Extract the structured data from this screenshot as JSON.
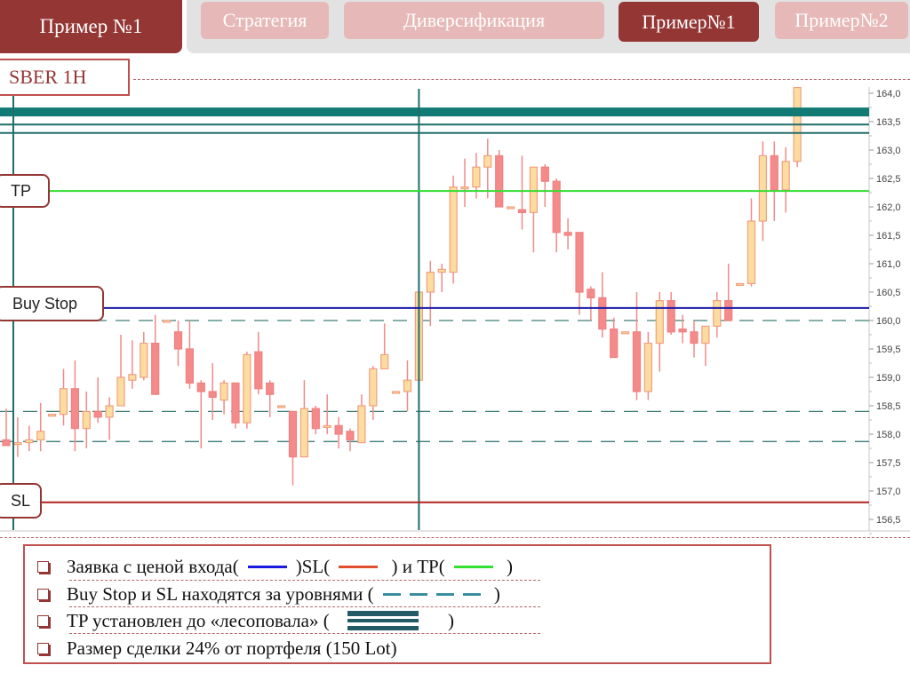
{
  "header": {
    "main_tab": "Пример №1",
    "tabs": [
      {
        "label": "Стратегия",
        "active": false
      },
      {
        "label": "Диверсификация",
        "active": false
      },
      {
        "label": "Пример№1",
        "active": true
      },
      {
        "label": "Пример№2",
        "active": false
      }
    ]
  },
  "chart_title": "SBER 1H",
  "level_labels": {
    "tp": "TP",
    "buy_stop": "Buy Stop",
    "sl": "SL"
  },
  "colors": {
    "accent": "#943634",
    "tab_light": "#e6b8b7",
    "entry": "#1a1aa8",
    "sl": "#b22222",
    "tp": "#33dd33",
    "levels": "#2e7a78",
    "bull": "#fddca0",
    "bear": "#f48a8a"
  },
  "chart_data": {
    "type": "candlestick",
    "title": "SBER 1H",
    "ylim": [
      156.3,
      164.1
    ],
    "y_ticks": [
      "164,0",
      "163,5",
      "163,0",
      "162,5",
      "162,0",
      "161,5",
      "161,0",
      "160,5",
      "160,0",
      "159,5",
      "159,0",
      "158,5",
      "158,0",
      "157,5",
      "157,0",
      "156,5"
    ],
    "y_tick_values": [
      164.0,
      163.5,
      163.0,
      162.5,
      162.0,
      161.5,
      161.0,
      160.5,
      160.0,
      159.5,
      159.0,
      158.5,
      158.0,
      157.5,
      157.0,
      156.5
    ],
    "grid": false,
    "levels": {
      "tp": 162.28,
      "buy_stop": 160.22,
      "sl": 156.8,
      "resistance_thick": 163.67,
      "resistance_lines": [
        163.45,
        163.3
      ],
      "dashed_levels": [
        160.0,
        158.4,
        157.87
      ]
    },
    "vertical_markers_candle_index": [
      1,
      36
    ],
    "candles_ohlc": [
      [
        157.9,
        158.45,
        157.8,
        157.8
      ],
      [
        157.85,
        158.3,
        157.6,
        157.85
      ],
      [
        157.85,
        158.15,
        157.7,
        157.9
      ],
      [
        157.9,
        158.55,
        157.7,
        158.05
      ],
      [
        158.35,
        158.35,
        158.35,
        158.35
      ],
      [
        158.35,
        159.15,
        158.15,
        158.8
      ],
      [
        158.8,
        159.3,
        157.7,
        158.1
      ],
      [
        158.1,
        158.75,
        157.75,
        158.4
      ],
      [
        158.4,
        159.0,
        158.2,
        158.3
      ],
      [
        158.3,
        158.65,
        157.9,
        158.5
      ],
      [
        158.5,
        159.75,
        158.5,
        159.0
      ],
      [
        158.95,
        159.65,
        158.8,
        159.05
      ],
      [
        159.0,
        159.8,
        158.95,
        159.6
      ],
      [
        159.6,
        160.1,
        158.7,
        158.7
      ],
      [
        160.0,
        160.0,
        160.0,
        160.0
      ],
      [
        159.8,
        160.0,
        159.2,
        159.5
      ],
      [
        159.5,
        160.0,
        158.8,
        158.9
      ],
      [
        158.9,
        158.95,
        157.75,
        158.75
      ],
      [
        158.75,
        159.25,
        158.25,
        158.65
      ],
      [
        158.6,
        158.95,
        158.35,
        158.9
      ],
      [
        158.9,
        158.9,
        158.1,
        158.2
      ],
      [
        158.2,
        159.45,
        158.1,
        159.4
      ],
      [
        159.45,
        159.8,
        158.7,
        158.8
      ],
      [
        158.9,
        158.95,
        158.3,
        158.7
      ],
      [
        158.5,
        158.5,
        158.5,
        158.5
      ],
      [
        158.4,
        158.4,
        157.1,
        157.6
      ],
      [
        157.6,
        158.95,
        157.6,
        158.45
      ],
      [
        158.45,
        158.5,
        158.0,
        158.1
      ],
      [
        158.15,
        158.7,
        158.0,
        158.15
      ],
      [
        158.15,
        158.3,
        157.75,
        158.0
      ],
      [
        158.05,
        158.1,
        157.7,
        157.9
      ],
      [
        157.85,
        158.7,
        157.85,
        158.5
      ],
      [
        158.5,
        159.2,
        158.25,
        159.15
      ],
      [
        159.15,
        159.95,
        159.15,
        159.4
      ],
      [
        158.75,
        158.75,
        158.75,
        158.75
      ],
      [
        158.75,
        159.3,
        158.4,
        158.95
      ],
      [
        158.95,
        160.5,
        158.95,
        160.5
      ],
      [
        160.5,
        161.05,
        159.9,
        160.85
      ],
      [
        160.85,
        161.0,
        160.5,
        160.9
      ],
      [
        160.85,
        162.55,
        160.65,
        162.35
      ],
      [
        162.35,
        162.85,
        162.0,
        162.35
      ],
      [
        162.35,
        162.95,
        162.15,
        162.7
      ],
      [
        162.7,
        163.2,
        162.15,
        162.9
      ],
      [
        162.9,
        163.0,
        162.0,
        162.0
      ],
      [
        162.0,
        162.0,
        162.0,
        162.0
      ],
      [
        161.95,
        162.9,
        161.6,
        161.9
      ],
      [
        161.9,
        162.7,
        161.2,
        162.7
      ],
      [
        162.7,
        162.75,
        162.0,
        162.45
      ],
      [
        162.45,
        162.5,
        161.2,
        161.55
      ],
      [
        161.55,
        161.8,
        161.25,
        161.5
      ],
      [
        161.55,
        161.55,
        160.1,
        160.5
      ],
      [
        160.55,
        160.6,
        160.0,
        160.4
      ],
      [
        160.4,
        160.85,
        159.7,
        159.85
      ],
      [
        159.85,
        160.05,
        159.35,
        159.35
      ],
      [
        159.8,
        159.8,
        159.8,
        159.8
      ],
      [
        159.8,
        160.5,
        158.6,
        158.75
      ],
      [
        158.75,
        159.8,
        158.6,
        159.6
      ],
      [
        159.6,
        160.5,
        159.1,
        160.35
      ],
      [
        160.35,
        160.5,
        159.75,
        159.8
      ],
      [
        159.85,
        160.1,
        159.6,
        159.8
      ],
      [
        159.8,
        160.0,
        159.35,
        159.6
      ],
      [
        159.6,
        159.9,
        159.2,
        159.9
      ],
      [
        159.9,
        160.5,
        159.7,
        160.35
      ],
      [
        160.35,
        161.0,
        160.0,
        160.0
      ],
      [
        160.65,
        160.65,
        160.65,
        160.65
      ],
      [
        160.65,
        162.15,
        160.6,
        161.75
      ],
      [
        161.75,
        163.15,
        161.4,
        162.9
      ],
      [
        162.9,
        163.15,
        161.75,
        162.3
      ],
      [
        162.3,
        163.05,
        161.9,
        162.8
      ],
      [
        162.8,
        164.1,
        162.7,
        164.1
      ]
    ]
  },
  "legend": {
    "items": [
      {
        "parts": [
          "Заявка с ценой входа(",
          ")SL(",
          " ) и TP(",
          " )"
        ]
      },
      {
        "parts": [
          "Buy Stop и SL находятся за уровнями (",
          " )"
        ]
      },
      {
        "parts": [
          "TP установлен до «лесоповала» (",
          " )"
        ]
      },
      {
        "parts": [
          "Размер сделки 24% от портфеля (150 Lot)"
        ]
      }
    ]
  }
}
